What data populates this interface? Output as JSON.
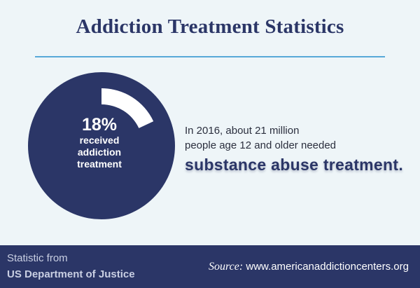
{
  "title": "Addiction Treatment Statistics",
  "chart_data": {
    "type": "pie",
    "slices": [
      {
        "label": "received addiction treatment",
        "value": 18
      },
      {
        "label": "",
        "value": 82
      }
    ],
    "highlight_value": "18%",
    "highlight_label_lines": [
      "received",
      "addiction",
      "treatment"
    ],
    "colors": {
      "circle": "#2b3667",
      "arc": "#ffffff"
    }
  },
  "description": {
    "line1": "In 2016, about 21 million",
    "line2": "people age 12 and older needed",
    "emphasis": "substance abuse treatment."
  },
  "footer": {
    "left_line1": "Statistic from",
    "left_line2": "US Department of Justice",
    "source_label": "Source:",
    "source_url": "www.americanaddictioncenters.org"
  },
  "colors": {
    "background": "#eef5f8",
    "navy": "#2b3667",
    "divider": "#58a9d8"
  }
}
